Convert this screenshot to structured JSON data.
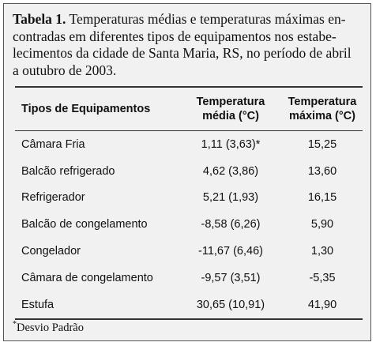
{
  "caption": {
    "label": "Tabela 1.",
    "lines": [
      "Temperaturas médias e temperaturas máximas en-",
      "contradas em diferentes tipos de equipamentos nos estabe-",
      "lecimentos da cidade de Santa Maria, RS, no período de abril",
      "a outubro de 2003."
    ]
  },
  "table": {
    "headers": [
      "Tipos de Equipamentos",
      "Temperatura média (°C)",
      "Temperatura máxima (°C)"
    ],
    "rows": [
      [
        "Câmara Fria",
        "1,11 (3,63)*",
        "15,25"
      ],
      [
        "Balcão refrigerado",
        "4,62  (3,86)",
        "13,60"
      ],
      [
        "Refrigerador",
        "5,21 (1,93)",
        "16,15"
      ],
      [
        "Balcão de congelamento",
        "-8,58 (6,26)",
        "5,90"
      ],
      [
        "Congelador",
        "-11,67 (6,46)",
        "1,30"
      ],
      [
        "Câmara de congelamento",
        "-9,57 (3,51)",
        "-5,35"
      ],
      [
        "Estufa",
        "30,65 (10,91)",
        "41,90"
      ]
    ]
  },
  "footnote": {
    "mark": "*",
    "text": "Desvio Padrão"
  }
}
